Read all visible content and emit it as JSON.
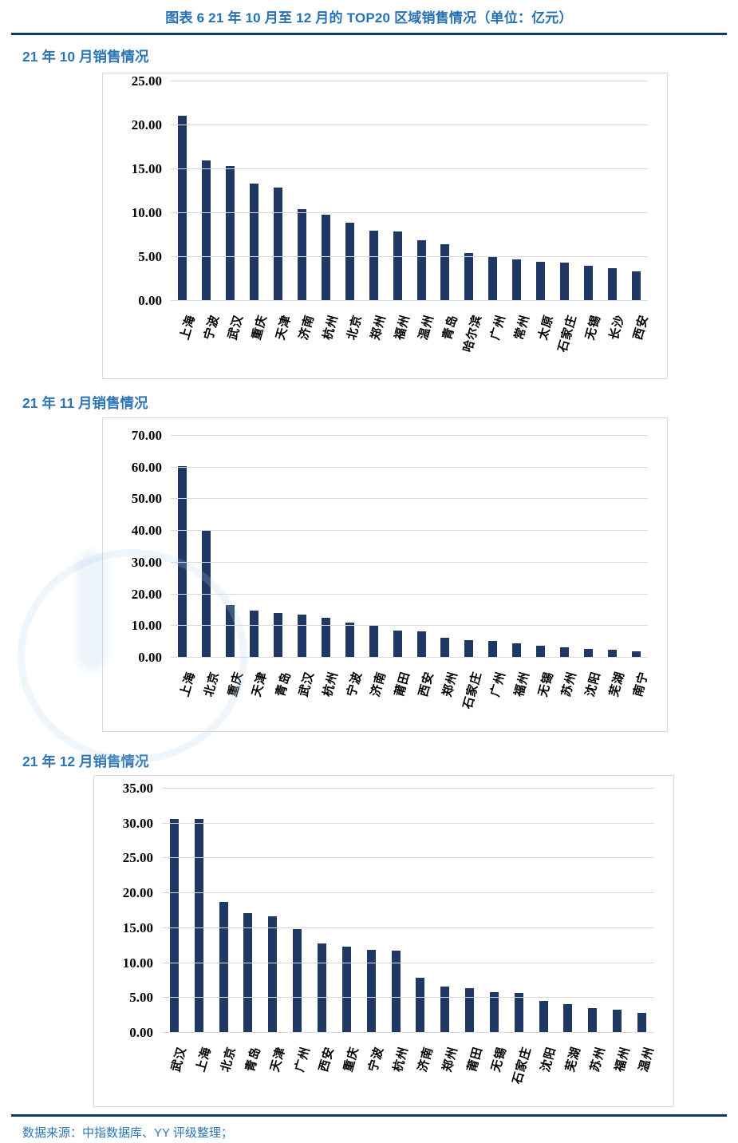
{
  "page": {
    "title": "图表 6 21 年 10 月至 12 月的 TOP20 区域销售情况（单位：亿元）",
    "footer": "数据来源：中指数据库、YY 评级整理；"
  },
  "colors": {
    "heading_blue": "#2e75b6",
    "rule_navy": "#17375e",
    "bar_navy": "#1f3864",
    "gridline_gray": "#d9d9d9"
  },
  "chart_data": [
    {
      "type": "bar",
      "title": "21 年 10 月销售情况",
      "unit": "亿元",
      "categories": [
        "上海",
        "宁波",
        "武汉",
        "重庆",
        "天津",
        "济南",
        "杭州",
        "北京",
        "郑州",
        "福州",
        "温州",
        "青岛",
        "哈尔滨",
        "广州",
        "常州",
        "太原",
        "石家庄",
        "无锡",
        "长沙",
        "西安"
      ],
      "values": [
        21.1,
        16.0,
        15.4,
        13.4,
        12.9,
        10.5,
        9.8,
        8.9,
        8.0,
        7.9,
        6.9,
        6.5,
        5.5,
        5.0,
        4.7,
        4.5,
        4.4,
        4.0,
        3.7,
        3.4
      ],
      "ylim": [
        0,
        25
      ],
      "ytick_step": 5,
      "ytick_format": "0.00",
      "grid": true,
      "legend": false,
      "bar_color": "#1f3864"
    },
    {
      "type": "bar",
      "title": "21 年 11 月销售情况",
      "unit": "亿元",
      "categories": [
        "上海",
        "北京",
        "重庆",
        "天津",
        "青岛",
        "武汉",
        "杭州",
        "宁波",
        "济南",
        "莆田",
        "西安",
        "郑州",
        "石家庄",
        "广州",
        "福州",
        "无锡",
        "苏州",
        "沈阳",
        "芜湖",
        "南宁"
      ],
      "values": [
        60.4,
        40.2,
        16.5,
        14.8,
        14.0,
        13.5,
        12.5,
        11.0,
        10.3,
        8.5,
        8.2,
        6.4,
        5.6,
        5.4,
        4.6,
        3.8,
        3.3,
        2.8,
        2.6,
        2.1
      ],
      "ylim": [
        0,
        70
      ],
      "ytick_step": 10,
      "ytick_format": "0.00",
      "grid": true,
      "legend": false,
      "bar_color": "#1f3864"
    },
    {
      "type": "bar",
      "title": "21 年 12 月销售情况",
      "unit": "亿元",
      "categories": [
        "武汉",
        "上海",
        "北京",
        "青岛",
        "天津",
        "广州",
        "西安",
        "重庆",
        "宁波",
        "杭州",
        "济南",
        "郑州",
        "莆田",
        "无锡",
        "石家庄",
        "沈阳",
        "芜湖",
        "苏州",
        "福州",
        "温州"
      ],
      "values": [
        30.7,
        30.6,
        18.8,
        17.2,
        16.7,
        14.9,
        12.8,
        12.4,
        11.9,
        11.8,
        7.9,
        6.6,
        6.4,
        5.8,
        5.7,
        4.6,
        4.1,
        3.6,
        3.3,
        2.9
      ],
      "ylim": [
        0,
        35
      ],
      "ytick_step": 5,
      "ytick_format": "0.00",
      "grid": true,
      "legend": false,
      "bar_color": "#1f3864"
    }
  ]
}
